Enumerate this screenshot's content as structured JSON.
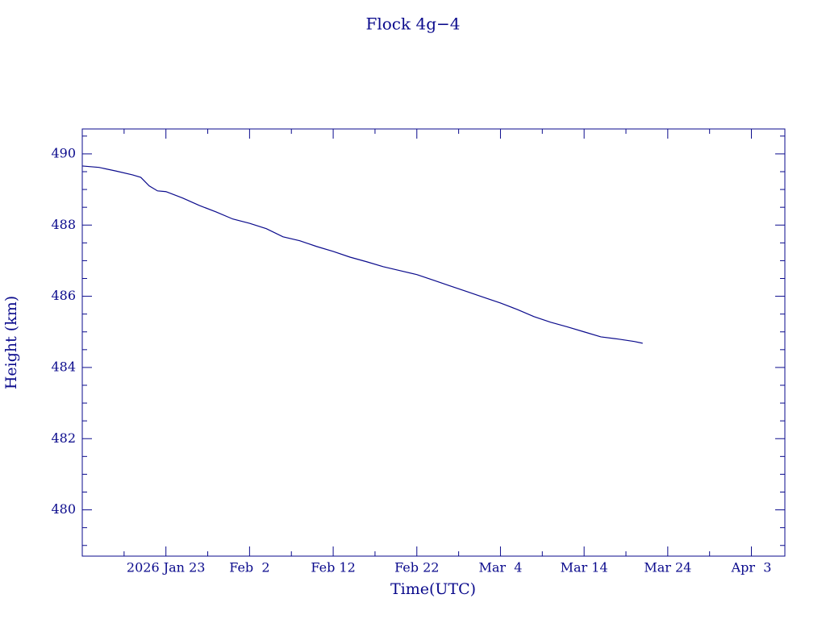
{
  "chart_data": {
    "type": "line",
    "title": "Flock 4g−4",
    "x_label": "Time(UTC)",
    "y_label": "Height (km)",
    "color": "#0a0a8c",
    "x": [
      "2026-01-13",
      "2026-01-15",
      "2026-01-17",
      "2026-01-19",
      "2026-01-20",
      "2026-01-21",
      "2026-01-22",
      "2026-01-23",
      "2026-01-25",
      "2026-01-27",
      "2026-01-29",
      "2026-01-31",
      "2026-02-02",
      "2026-02-04",
      "2026-02-06",
      "2026-02-08",
      "2026-02-10",
      "2026-02-12",
      "2026-02-14",
      "2026-02-16",
      "2026-02-18",
      "2026-02-20",
      "2026-02-22",
      "2026-02-24",
      "2026-02-26",
      "2026-02-28",
      "2026-03-02",
      "2026-03-04",
      "2026-03-06",
      "2026-03-08",
      "2026-03-10",
      "2026-03-12",
      "2026-03-14",
      "2026-03-16",
      "2026-03-18",
      "2026-03-20",
      "2026-03-21"
    ],
    "values": [
      489.66,
      489.62,
      489.52,
      489.41,
      489.34,
      489.1,
      488.96,
      488.94,
      488.76,
      488.55,
      488.37,
      488.17,
      488.05,
      487.9,
      487.67,
      487.56,
      487.4,
      487.26,
      487.1,
      486.97,
      486.83,
      486.72,
      486.61,
      486.45,
      486.29,
      486.13,
      485.97,
      485.81,
      485.63,
      485.43,
      485.27,
      485.14,
      485.0,
      484.86,
      484.8,
      484.73,
      484.68
    ],
    "xlim": [
      "2026-01-13",
      "2026-04-07"
    ],
    "xticks": [
      {
        "value": "2026-01-23",
        "label": "2026 Jan 23"
      },
      {
        "value": "2026-02-02",
        "label": "Feb  2"
      },
      {
        "value": "2026-02-12",
        "label": "Feb 12"
      },
      {
        "value": "2026-02-22",
        "label": "Feb 22"
      },
      {
        "value": "2026-03-04",
        "label": "Mar  4"
      },
      {
        "value": "2026-03-14",
        "label": "Mar 14"
      },
      {
        "value": "2026-03-24",
        "label": "Mar 24"
      },
      {
        "value": "2026-04-03",
        "label": "Apr  3"
      }
    ],
    "xminorticks": [
      "2026-01-18",
      "2026-01-28",
      "2026-02-07",
      "2026-02-17",
      "2026-02-27",
      "2026-03-09",
      "2026-03-19",
      "2026-03-29"
    ],
    "ylim": [
      478.7,
      490.7
    ],
    "yticks": [
      480,
      482,
      484,
      486,
      488,
      490
    ],
    "yminorticks": [
      479,
      479.5,
      480.5,
      481,
      481.5,
      482.5,
      483,
      483.5,
      484.5,
      485,
      485.5,
      486.5,
      487,
      487.5,
      488.5,
      489,
      489.5,
      490.5
    ]
  }
}
